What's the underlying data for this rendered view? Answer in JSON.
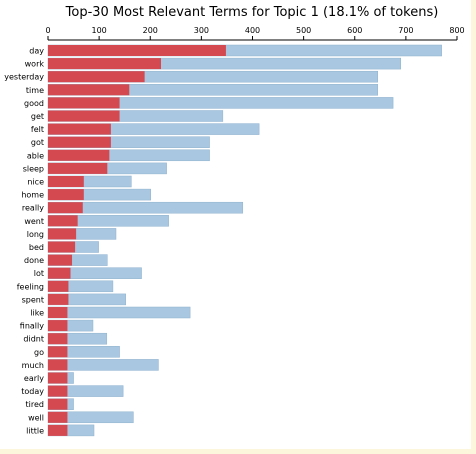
{
  "colors": {
    "overall": "#a9c7e0",
    "topic": "#d4484f",
    "axis": "#000000",
    "background_strip": "#fbf6dc"
  },
  "chart_data": {
    "type": "bar",
    "orientation": "horizontal",
    "stacked_overlay": true,
    "title": "Top-30 Most Relevant Terms for Topic 1 (18.1% of tokens)",
    "xlabel": "",
    "ylabel": "",
    "xlim": [
      0,
      800
    ],
    "xticks": [
      0,
      100,
      200,
      300,
      400,
      500,
      600,
      700,
      800
    ],
    "x_axis_position": "top",
    "grid": false,
    "categories": [
      "day",
      "work",
      "yesterday",
      "time",
      "good",
      "get",
      "felt",
      "got",
      "able",
      "sleep",
      "nice",
      "home",
      "really",
      "went",
      "long",
      "bed",
      "done",
      "lot",
      "feeling",
      "spent",
      "like",
      "finally",
      "didnt",
      "go",
      "much",
      "early",
      "today",
      "tired",
      "well",
      "little"
    ],
    "series": [
      {
        "values": [
          770,
          690,
          645,
          645,
          675,
          342,
          413,
          316,
          316,
          232,
          163,
          201,
          381,
          236,
          133,
          99,
          116,
          183,
          127,
          152,
          278,
          88,
          115,
          140,
          216,
          50,
          147,
          50,
          167,
          90
        ]
      },
      {
        "values": [
          348,
          221,
          189,
          159,
          140,
          140,
          123,
          123,
          120,
          116,
          70,
          70,
          68,
          58,
          55,
          53,
          47,
          44,
          40,
          40,
          38,
          38,
          38,
          38,
          38,
          38,
          38,
          38,
          38,
          38
        ]
      }
    ]
  }
}
